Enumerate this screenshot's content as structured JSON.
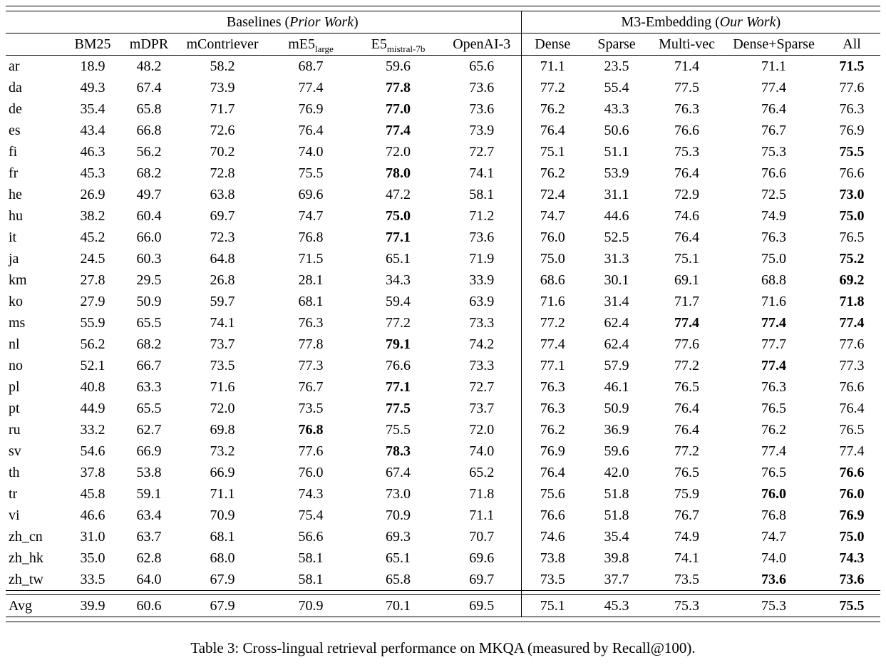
{
  "table": {
    "group_headers": [
      {
        "prefix": "Baselines (",
        "italic": "Prior Work",
        "suffix": ")"
      },
      {
        "prefix": "M3-Embedding (",
        "italic": "Our Work",
        "suffix": ")"
      }
    ],
    "columns": [
      {
        "main": "BM25",
        "sub": ""
      },
      {
        "main": "mDPR",
        "sub": ""
      },
      {
        "main": "mContriever",
        "sub": ""
      },
      {
        "main": "mE5",
        "sub": "large"
      },
      {
        "main": "E5",
        "sub": "mistral-7b"
      },
      {
        "main": "OpenAI-3",
        "sub": ""
      },
      {
        "main": "Dense",
        "sub": ""
      },
      {
        "main": "Sparse",
        "sub": ""
      },
      {
        "main": "Multi-vec",
        "sub": ""
      },
      {
        "main": "Dense+Sparse",
        "sub": ""
      },
      {
        "main": "All",
        "sub": ""
      }
    ],
    "rows": [
      {
        "lang": "ar",
        "values": [
          "18.9",
          "48.2",
          "58.2",
          "68.7",
          "59.6",
          "65.6",
          "71.1",
          "23.5",
          "71.4",
          "71.1",
          "71.5"
        ],
        "bold": [
          10
        ]
      },
      {
        "lang": "da",
        "values": [
          "49.3",
          "67.4",
          "73.9",
          "77.4",
          "77.8",
          "73.6",
          "77.2",
          "55.4",
          "77.5",
          "77.4",
          "77.6"
        ],
        "bold": [
          4
        ]
      },
      {
        "lang": "de",
        "values": [
          "35.4",
          "65.8",
          "71.7",
          "76.9",
          "77.0",
          "73.6",
          "76.2",
          "43.3",
          "76.3",
          "76.4",
          "76.3"
        ],
        "bold": [
          4
        ]
      },
      {
        "lang": "es",
        "values": [
          "43.4",
          "66.8",
          "72.6",
          "76.4",
          "77.4",
          "73.9",
          "76.4",
          "50.6",
          "76.6",
          "76.7",
          "76.9"
        ],
        "bold": [
          4
        ]
      },
      {
        "lang": "fi",
        "values": [
          "46.3",
          "56.2",
          "70.2",
          "74.0",
          "72.0",
          "72.7",
          "75.1",
          "51.1",
          "75.3",
          "75.3",
          "75.5"
        ],
        "bold": [
          10
        ]
      },
      {
        "lang": "fr",
        "values": [
          "45.3",
          "68.2",
          "72.8",
          "75.5",
          "78.0",
          "74.1",
          "76.2",
          "53.9",
          "76.4",
          "76.6",
          "76.6"
        ],
        "bold": [
          4
        ]
      },
      {
        "lang": "he",
        "values": [
          "26.9",
          "49.7",
          "63.8",
          "69.6",
          "47.2",
          "58.1",
          "72.4",
          "31.1",
          "72.9",
          "72.5",
          "73.0"
        ],
        "bold": [
          10
        ]
      },
      {
        "lang": "hu",
        "values": [
          "38.2",
          "60.4",
          "69.7",
          "74.7",
          "75.0",
          "71.2",
          "74.7",
          "44.6",
          "74.6",
          "74.9",
          "75.0"
        ],
        "bold": [
          4,
          10
        ]
      },
      {
        "lang": "it",
        "values": [
          "45.2",
          "66.0",
          "72.3",
          "76.8",
          "77.1",
          "73.6",
          "76.0",
          "52.5",
          "76.4",
          "76.3",
          "76.5"
        ],
        "bold": [
          4
        ]
      },
      {
        "lang": "ja",
        "values": [
          "24.5",
          "60.3",
          "64.8",
          "71.5",
          "65.1",
          "71.9",
          "75.0",
          "31.3",
          "75.1",
          "75.0",
          "75.2"
        ],
        "bold": [
          10
        ]
      },
      {
        "lang": "km",
        "values": [
          "27.8",
          "29.5",
          "26.8",
          "28.1",
          "34.3",
          "33.9",
          "68.6",
          "30.1",
          "69.1",
          "68.8",
          "69.2"
        ],
        "bold": [
          10
        ]
      },
      {
        "lang": "ko",
        "values": [
          "27.9",
          "50.9",
          "59.7",
          "68.1",
          "59.4",
          "63.9",
          "71.6",
          "31.4",
          "71.7",
          "71.6",
          "71.8"
        ],
        "bold": [
          10
        ]
      },
      {
        "lang": "ms",
        "values": [
          "55.9",
          "65.5",
          "74.1",
          "76.3",
          "77.2",
          "73.3",
          "77.2",
          "62.4",
          "77.4",
          "77.4",
          "77.4"
        ],
        "bold": [
          8,
          9,
          10
        ]
      },
      {
        "lang": "nl",
        "values": [
          "56.2",
          "68.2",
          "73.7",
          "77.8",
          "79.1",
          "74.2",
          "77.4",
          "62.4",
          "77.6",
          "77.7",
          "77.6"
        ],
        "bold": [
          4
        ]
      },
      {
        "lang": "no",
        "values": [
          "52.1",
          "66.7",
          "73.5",
          "77.3",
          "76.6",
          "73.3",
          "77.1",
          "57.9",
          "77.2",
          "77.4",
          "77.3"
        ],
        "bold": [
          9
        ]
      },
      {
        "lang": "pl",
        "values": [
          "40.8",
          "63.3",
          "71.6",
          "76.7",
          "77.1",
          "72.7",
          "76.3",
          "46.1",
          "76.5",
          "76.3",
          "76.6"
        ],
        "bold": [
          4
        ]
      },
      {
        "lang": "pt",
        "values": [
          "44.9",
          "65.5",
          "72.0",
          "73.5",
          "77.5",
          "73.7",
          "76.3",
          "50.9",
          "76.4",
          "76.5",
          "76.4"
        ],
        "bold": [
          4
        ]
      },
      {
        "lang": "ru",
        "values": [
          "33.2",
          "62.7",
          "69.8",
          "76.8",
          "75.5",
          "72.0",
          "76.2",
          "36.9",
          "76.4",
          "76.2",
          "76.5"
        ],
        "bold": [
          3
        ]
      },
      {
        "lang": "sv",
        "values": [
          "54.6",
          "66.9",
          "73.2",
          "77.6",
          "78.3",
          "74.0",
          "76.9",
          "59.6",
          "77.2",
          "77.4",
          "77.4"
        ],
        "bold": [
          4
        ]
      },
      {
        "lang": "th",
        "values": [
          "37.8",
          "53.8",
          "66.9",
          "76.0",
          "67.4",
          "65.2",
          "76.4",
          "42.0",
          "76.5",
          "76.5",
          "76.6"
        ],
        "bold": [
          10
        ]
      },
      {
        "lang": "tr",
        "values": [
          "45.8",
          "59.1",
          "71.1",
          "74.3",
          "73.0",
          "71.8",
          "75.6",
          "51.8",
          "75.9",
          "76.0",
          "76.0"
        ],
        "bold": [
          9,
          10
        ]
      },
      {
        "lang": "vi",
        "values": [
          "46.6",
          "63.4",
          "70.9",
          "75.4",
          "70.9",
          "71.1",
          "76.6",
          "51.8",
          "76.7",
          "76.8",
          "76.9"
        ],
        "bold": [
          10
        ]
      },
      {
        "lang": "zh_cn",
        "values": [
          "31.0",
          "63.7",
          "68.1",
          "56.6",
          "69.3",
          "70.7",
          "74.6",
          "35.4",
          "74.9",
          "74.7",
          "75.0"
        ],
        "bold": [
          10
        ]
      },
      {
        "lang": "zh_hk",
        "values": [
          "35.0",
          "62.8",
          "68.0",
          "58.1",
          "65.1",
          "69.6",
          "73.8",
          "39.8",
          "74.1",
          "74.0",
          "74.3"
        ],
        "bold": [
          10
        ]
      },
      {
        "lang": "zh_tw",
        "values": [
          "33.5",
          "64.0",
          "67.9",
          "58.1",
          "65.8",
          "69.7",
          "73.5",
          "37.7",
          "73.5",
          "73.6",
          "73.6"
        ],
        "bold": [
          9,
          10
        ]
      }
    ],
    "avg_row": {
      "lang": "Avg",
      "values": [
        "39.9",
        "60.6",
        "67.9",
        "70.9",
        "70.1",
        "69.5",
        "75.1",
        "45.3",
        "75.3",
        "75.3",
        "75.5"
      ],
      "bold": [
        10
      ]
    }
  },
  "caption": "Table 3: Cross-lingual retrieval performance on MKQA (measured by Recall@100)."
}
